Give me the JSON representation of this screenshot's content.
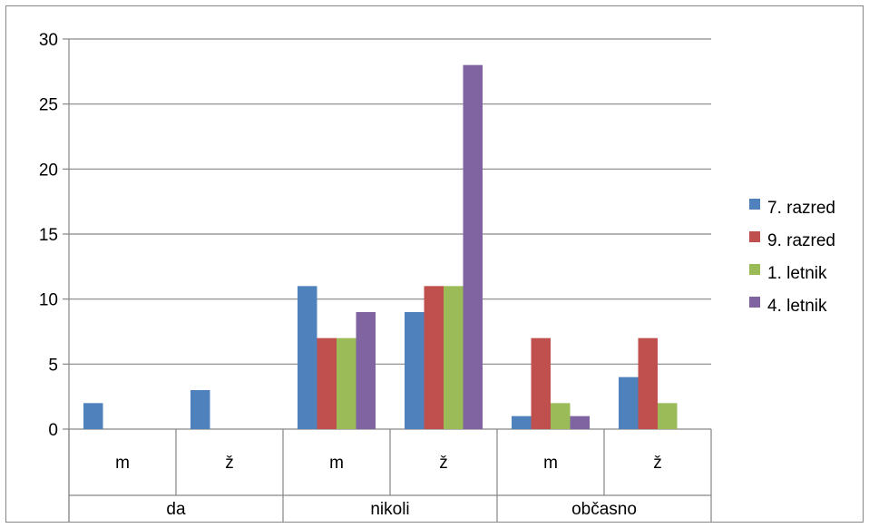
{
  "chart_data": {
    "type": "bar",
    "title": "",
    "xlabel": "",
    "ylabel": "",
    "ylim": [
      0,
      30
    ],
    "yticks": [
      0,
      5,
      10,
      15,
      20,
      25,
      30
    ],
    "grid": true,
    "legend_position": "right",
    "groups": [
      {
        "label": "da",
        "categories": [
          "m",
          "ž"
        ]
      },
      {
        "label": "nikoli",
        "categories": [
          "m",
          "ž"
        ]
      },
      {
        "label": "občasno",
        "categories": [
          "m",
          "ž"
        ]
      }
    ],
    "series": [
      {
        "name": "7. razred",
        "color": "#4F81BD",
        "values": [
          2,
          3,
          11,
          9,
          1,
          4
        ]
      },
      {
        "name": "9. razred",
        "color": "#C0504D",
        "values": [
          0,
          0,
          7,
          11,
          7,
          7
        ]
      },
      {
        "name": "1. letnik",
        "color": "#9BBB59",
        "values": [
          0,
          0,
          7,
          11,
          2,
          2
        ]
      },
      {
        "name": "4. letnik",
        "color": "#8064A2",
        "values": [
          0,
          0,
          9,
          28,
          1,
          0
        ]
      }
    ]
  }
}
